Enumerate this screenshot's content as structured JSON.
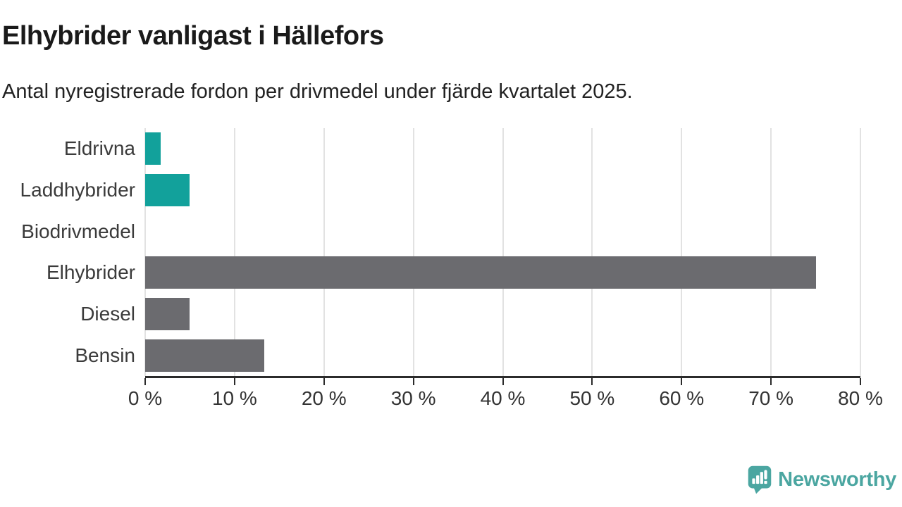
{
  "header": {
    "title": "Elhybrider vanligast i Hällefors",
    "subtitle": "Antal nyregistrerade fordon per drivmedel under fjärde kvartalet 2025."
  },
  "chart_data": {
    "type": "bar",
    "orientation": "horizontal",
    "title": "Elhybrider vanligast i Hällefors",
    "subtitle": "Antal nyregistrerade fordon per drivmedel under fjärde kvartalet 2025.",
    "categories": [
      "Eldrivna",
      "Laddhybrider",
      "Biodrivmedel",
      "Elhybrider",
      "Diesel",
      "Bensin"
    ],
    "values": [
      1.7,
      5.0,
      0,
      75.0,
      5.0,
      13.3
    ],
    "unit": "%",
    "bar_colors": [
      "#12a19b",
      "#12a19b",
      "#6b6b6f",
      "#6b6b6f",
      "#6b6b6f",
      "#6b6b6f"
    ],
    "x_axis": {
      "min": 0,
      "max": 80,
      "tick_step": 10,
      "tick_labels": [
        "0 %",
        "10 %",
        "20 %",
        "30 %",
        "40 %",
        "50 %",
        "60 %",
        "70 %",
        "80 %"
      ]
    },
    "grid": "vertical-gridlines",
    "legend": "none"
  },
  "branding": {
    "wordmark": "Newsworthy"
  },
  "colors": {
    "highlight_bar": "#12a19b",
    "default_bar": "#6b6b6f",
    "gridline": "#e2e2e2",
    "axis": "#2b2b2b",
    "logo": "#4ba6a1",
    "title_text": "#1a1a1a",
    "label_text": "#3b3b3b"
  }
}
